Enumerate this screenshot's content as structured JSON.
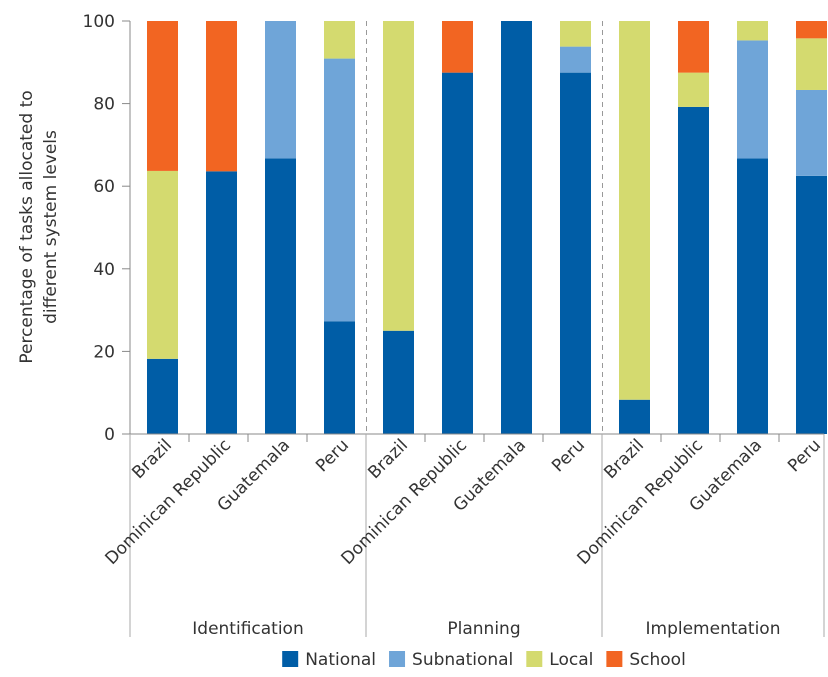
{
  "chart_data": {
    "type": "bar",
    "stacked": true,
    "ylabel": "Percentage of tasks allocated to different system levels",
    "ylabel_lines": [
      "Percentage of tasks allocated to",
      "different system levels"
    ],
    "ylim": [
      0,
      100
    ],
    "yticks": [
      0,
      20,
      40,
      60,
      80,
      100
    ],
    "grid": false,
    "legend_position": "bottom",
    "groups": [
      {
        "name": "Identification",
        "categories": [
          "Brazil",
          "Dominican Republic",
          "Guatemala",
          "Peru"
        ]
      },
      {
        "name": "Planning",
        "categories": [
          "Brazil",
          "Dominican Republic",
          "Guatemala",
          "Peru"
        ]
      },
      {
        "name": "Implementation",
        "categories": [
          "Brazil",
          "Dominican Republic",
          "Guatemala",
          "Peru"
        ]
      }
    ],
    "series": [
      {
        "name": "National",
        "color": "#005da6",
        "values": [
          18.2,
          63.6,
          66.7,
          27.3,
          25.0,
          87.5,
          100.0,
          87.5,
          8.3,
          79.2,
          66.7,
          62.5
        ]
      },
      {
        "name": "Subnational",
        "color": "#6fa5d8",
        "values": [
          0.0,
          0.0,
          33.3,
          63.6,
          0.0,
          0.0,
          0.0,
          6.3,
          0.0,
          0.0,
          28.6,
          20.8
        ]
      },
      {
        "name": "Local",
        "color": "#d4da6f",
        "values": [
          45.5,
          0.0,
          0.0,
          9.1,
          75.0,
          0.0,
          0.0,
          6.2,
          91.7,
          8.3,
          4.7,
          12.5
        ]
      },
      {
        "name": "School",
        "color": "#f26522",
        "values": [
          36.3,
          36.4,
          0.0,
          0.0,
          0.0,
          12.5,
          0.0,
          0.0,
          0.0,
          12.5,
          0.0,
          4.2
        ]
      }
    ]
  }
}
